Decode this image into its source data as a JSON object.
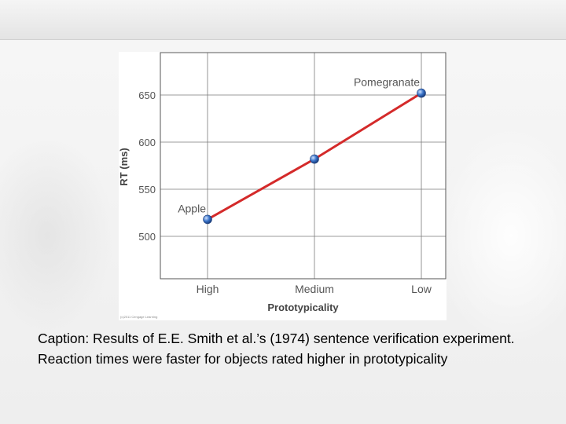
{
  "chart_data": {
    "type": "line",
    "categories": [
      "High",
      "Medium",
      "Low"
    ],
    "series": [
      {
        "values": [
          518,
          582,
          652
        ],
        "color": "#d42a2a",
        "marker_color": "#3a74c9"
      }
    ],
    "point_labels": [
      "Apple",
      "",
      "Pomegranate"
    ],
    "xlabel": "Prototypicality",
    "ylabel": "RT (ms)",
    "yticks": [
      500,
      550,
      600,
      650
    ],
    "ylim": [
      455,
      695
    ],
    "grid": true
  },
  "credit": "(c)2011 Cengage Learning",
  "caption": "Caption: Results of E.E. Smith et al.’s (1974) sentence verification experiment. Reaction times were faster for objects rated higher in prototypicality"
}
